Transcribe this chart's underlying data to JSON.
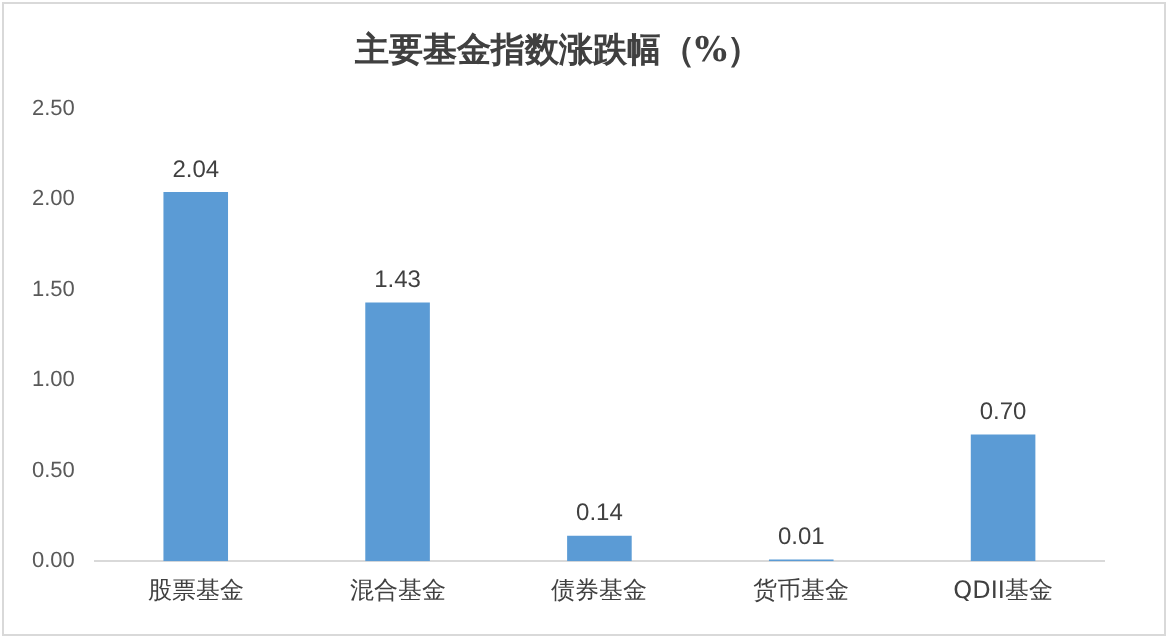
{
  "chart_data": {
    "type": "bar",
    "title": "主要基金指数涨跌幅（%）",
    "categories": [
      "股票基金",
      "混合基金",
      "债券基金",
      "货币基金",
      "QDII基金"
    ],
    "values": [
      2.04,
      1.43,
      0.14,
      0.01,
      0.7
    ],
    "value_labels": [
      "2.04",
      "1.43",
      "0.14",
      "0.01",
      "0.70"
    ],
    "color": "#5b9bd5",
    "ylim": [
      0,
      2.5
    ],
    "yticks": [
      {
        "value": 0,
        "label": "0.00"
      },
      {
        "value": 0.5,
        "label": "0.50"
      },
      {
        "value": 1,
        "label": "1.00"
      },
      {
        "value": 1.5,
        "label": "1.50"
      },
      {
        "value": 2,
        "label": "2.00"
      },
      {
        "value": 2.5,
        "label": "2.50"
      }
    ],
    "grid": false,
    "legend": false
  }
}
